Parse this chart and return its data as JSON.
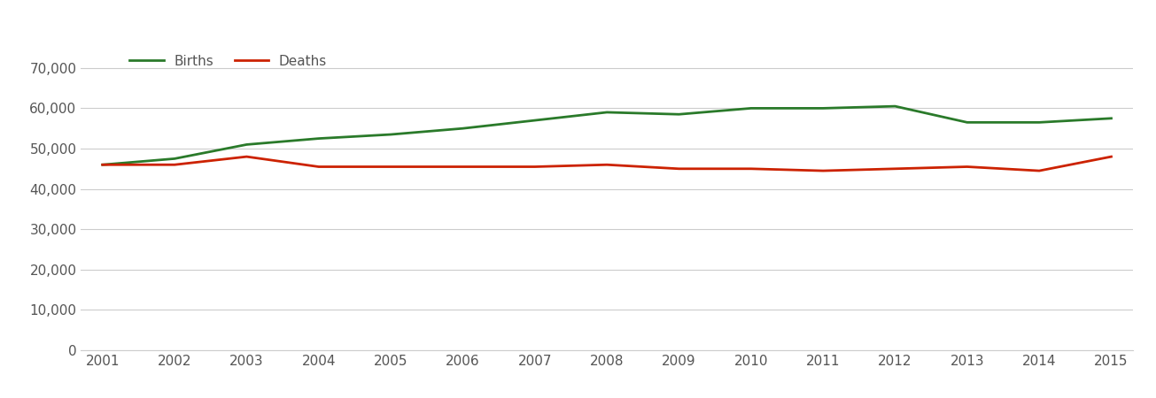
{
  "years": [
    2001,
    2002,
    2003,
    2004,
    2005,
    2006,
    2007,
    2008,
    2009,
    2010,
    2011,
    2012,
    2013,
    2014,
    2015
  ],
  "births": [
    46000,
    47500,
    51000,
    52500,
    53500,
    55000,
    57000,
    59000,
    58500,
    60000,
    60000,
    60500,
    56500,
    56500,
    57500
  ],
  "deaths": [
    46000,
    46000,
    48000,
    45500,
    45500,
    45500,
    45500,
    46000,
    45000,
    45000,
    44500,
    45000,
    45500,
    44500,
    48000
  ],
  "births_color": "#2a7a2a",
  "deaths_color": "#cc2200",
  "births_label": "Births",
  "deaths_label": "Deaths",
  "ylim": [
    0,
    75000
  ],
  "yticks": [
    0,
    10000,
    20000,
    30000,
    40000,
    50000,
    60000,
    70000
  ],
  "background_color": "#ffffff",
  "grid_color": "#cccccc",
  "line_width": 2.0,
  "tick_label_color": "#555555",
  "legend_fontsize": 11,
  "tick_fontsize": 11
}
